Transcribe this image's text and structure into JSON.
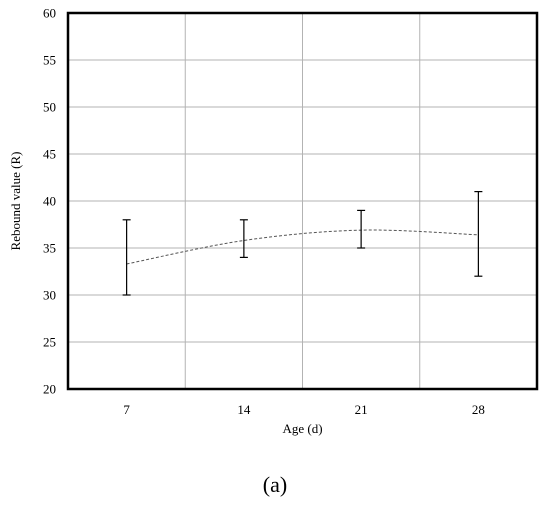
{
  "chart_data": {
    "type": "line",
    "title": "",
    "xlabel": "Age (d)",
    "ylabel": "Rebound value (R)",
    "categories": [
      "7",
      "14",
      "21",
      "28"
    ],
    "series": [
      {
        "values": [
          33.3,
          35.8,
          36.9,
          36.4
        ],
        "error_low": [
          30,
          34,
          35,
          32
        ],
        "error_high": [
          38,
          38,
          39,
          41
        ],
        "line_style": "dashed"
      }
    ],
    "ylim": [
      20,
      60
    ],
    "yticks": [
      20,
      25,
      30,
      35,
      40,
      45,
      50,
      55,
      60
    ],
    "grid": true,
    "legend": "none"
  },
  "panel_label": "(a)",
  "colors": {
    "line": "#555555",
    "grid": "#b3b3b3",
    "axis": "#000000"
  }
}
